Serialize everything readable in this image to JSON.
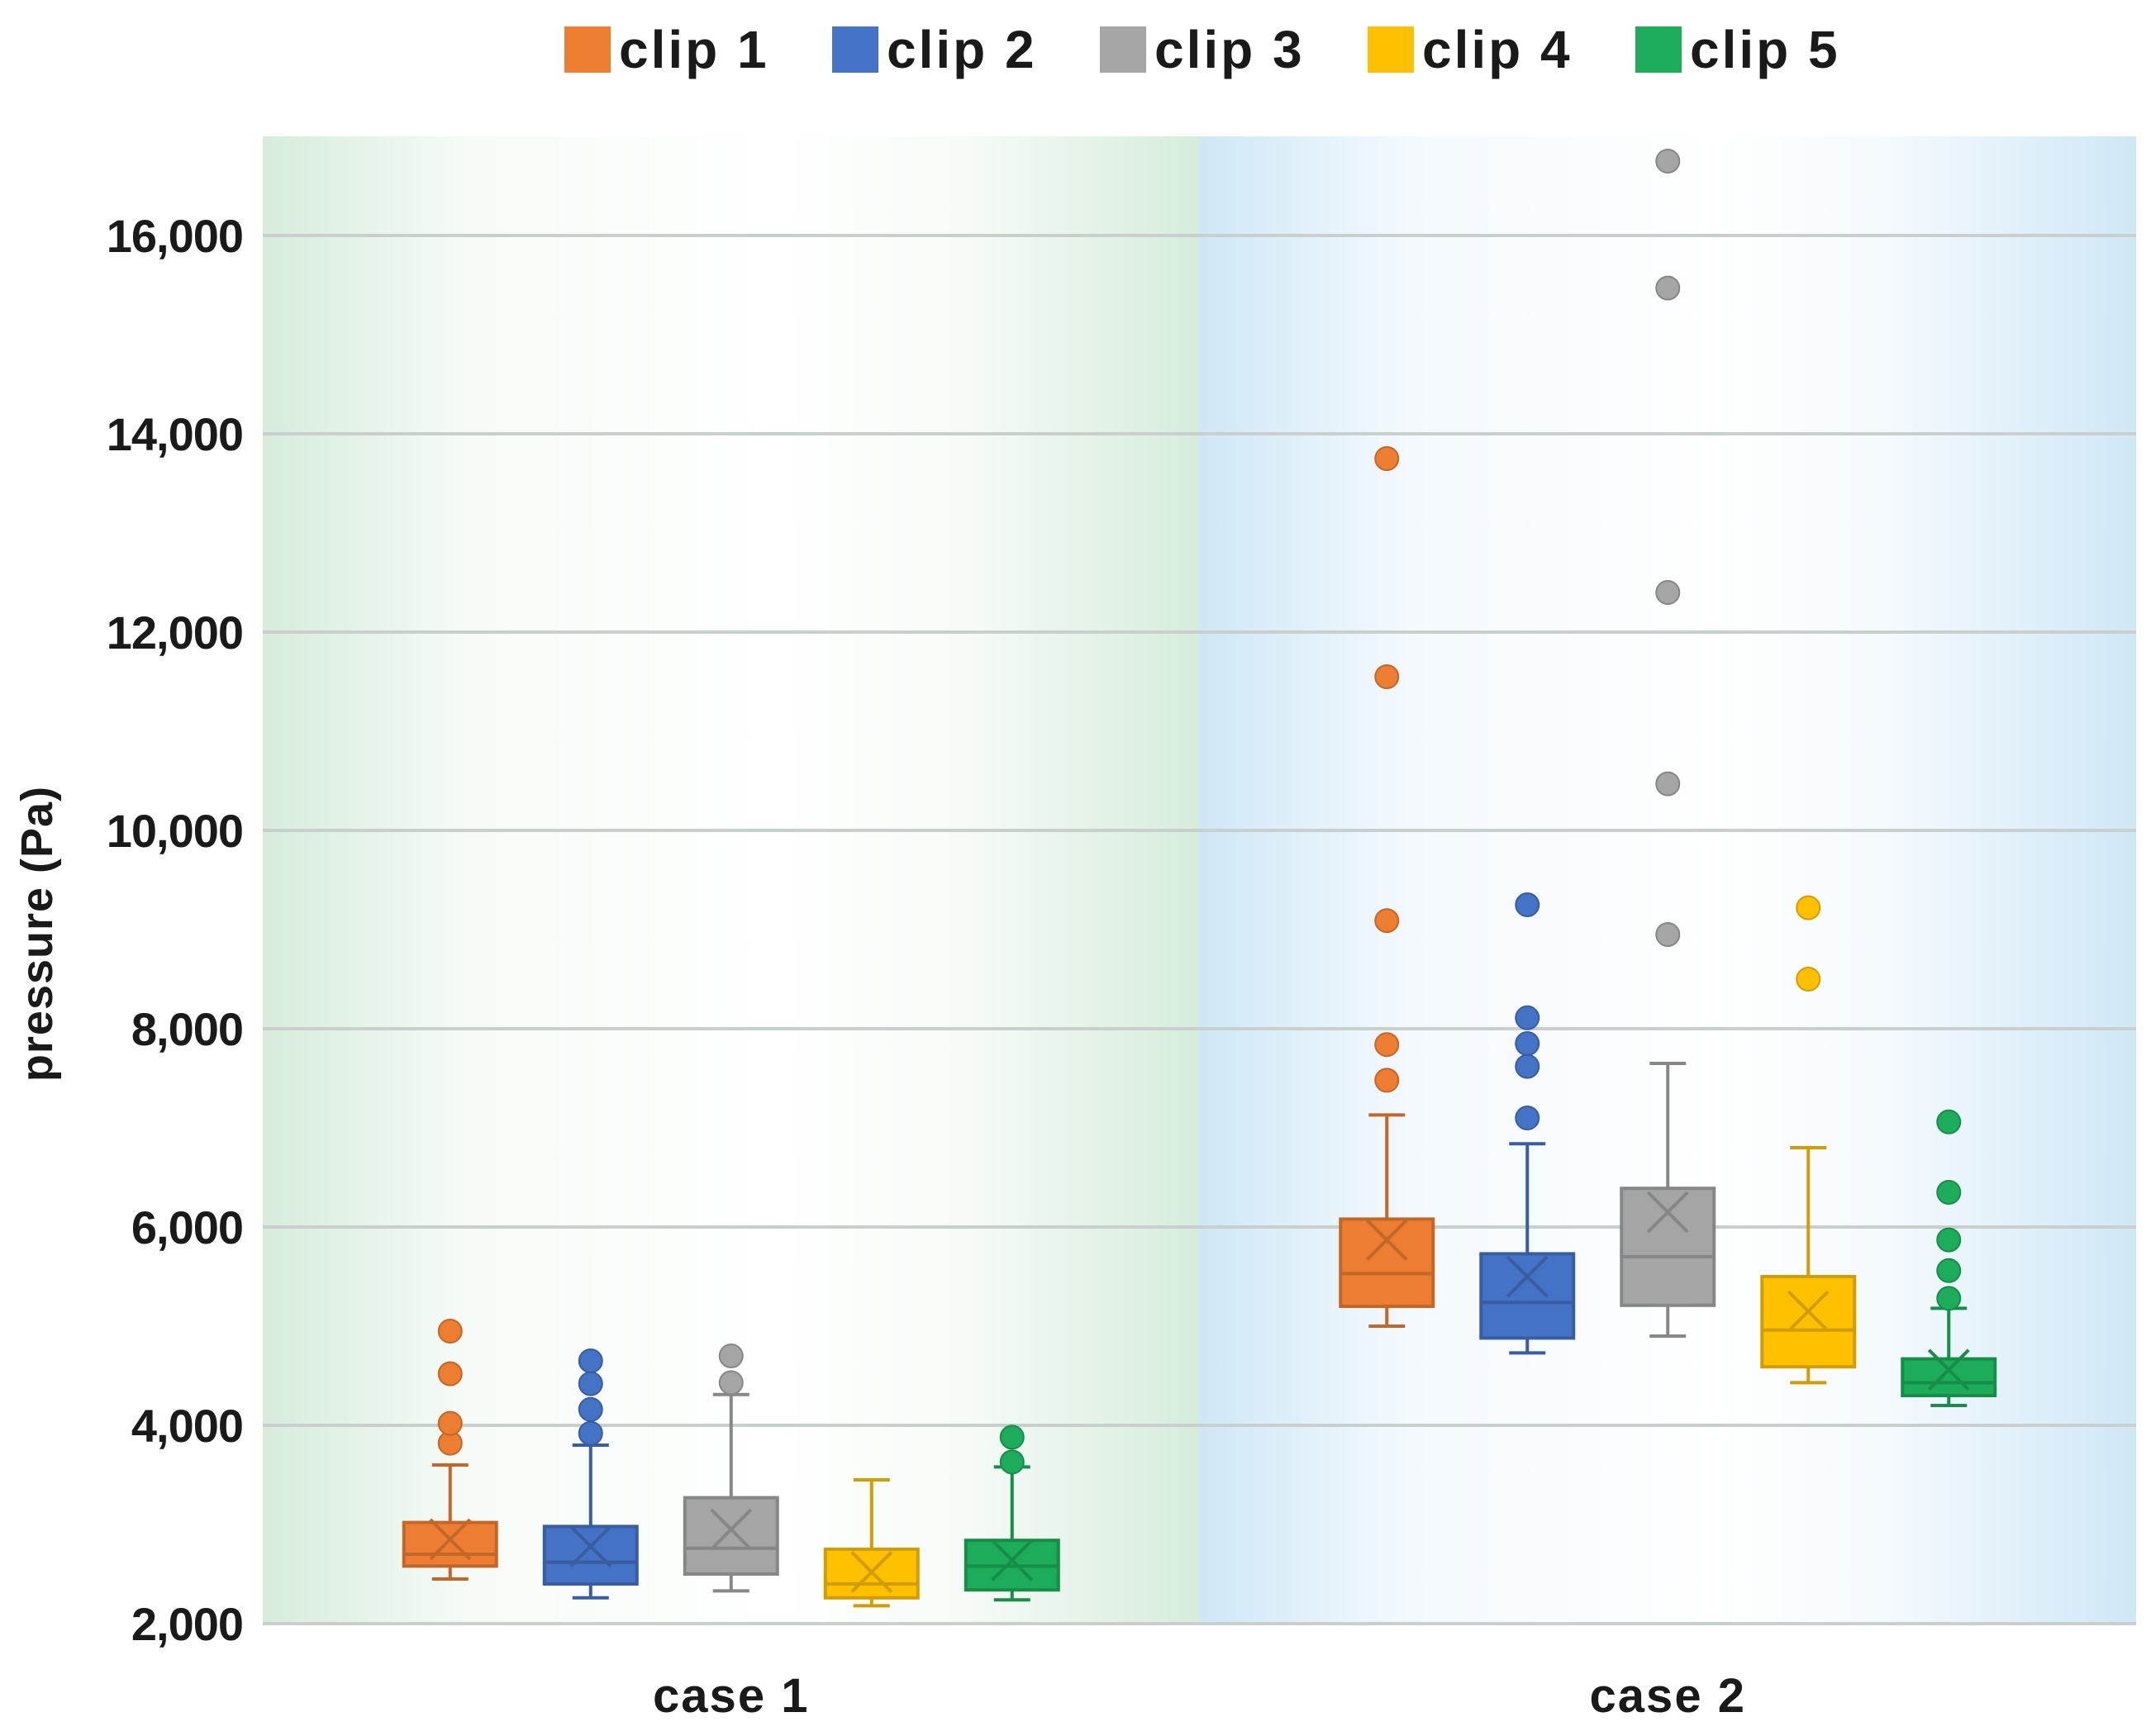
{
  "chart_data": {
    "type": "box",
    "title": "",
    "xlabel": "",
    "ylabel": "pressure (Pa)",
    "categories": [
      "case 1",
      "case 2"
    ],
    "ylim": [
      2000,
      17000
    ],
    "yticks": [
      2000,
      4000,
      6000,
      8000,
      10000,
      12000,
      14000,
      16000
    ],
    "ytick_labels": [
      "2,000",
      "4,000",
      "6,000",
      "8,000",
      "10,000",
      "12,000",
      "14,000",
      "16,000"
    ],
    "grid": true,
    "legend_position": "top",
    "background_bands": [
      {
        "category": "case 1",
        "color": "#d6ecdc"
      },
      {
        "category": "case 2",
        "color": "#cfe7f6"
      }
    ],
    "series": [
      {
        "name": "clip 1",
        "color": "#ed7d31",
        "boxes": [
          {
            "category": "case 1",
            "min": 2450,
            "q1": 2580,
            "median": 2700,
            "q3": 3020,
            "max": 3600,
            "mean": 2850,
            "outliers": [
              3820,
              4020,
              4520,
              4950
            ]
          },
          {
            "category": "case 2",
            "min": 5000,
            "q1": 5200,
            "median": 5530,
            "q3": 6080,
            "max": 7130,
            "mean": 5870,
            "outliers": [
              7480,
              7840,
              9090,
              11550,
              13750
            ]
          }
        ]
      },
      {
        "name": "clip 2",
        "color": "#4472c4",
        "boxes": [
          {
            "category": "case 1",
            "min": 2260,
            "q1": 2400,
            "median": 2620,
            "q3": 2980,
            "max": 3800,
            "mean": 2780,
            "outliers": [
              3920,
              4160,
              4420,
              4650
            ]
          },
          {
            "category": "case 2",
            "min": 4730,
            "q1": 4880,
            "median": 5240,
            "q3": 5730,
            "max": 6840,
            "mean": 5500,
            "outliers": [
              7100,
              7620,
              7850,
              8110,
              9250
            ]
          }
        ]
      },
      {
        "name": "clip 3",
        "color": "#a5a5a5",
        "boxes": [
          {
            "category": "case 1",
            "min": 2330,
            "q1": 2500,
            "median": 2760,
            "q3": 3270,
            "max": 4310,
            "mean": 2950,
            "outliers": [
              4430,
              4700
            ]
          },
          {
            "category": "case 2",
            "min": 4900,
            "q1": 5210,
            "median": 5700,
            "q3": 6390,
            "max": 7650,
            "mean": 6150,
            "outliers": [
              8950,
              10470,
              12400,
              15470,
              16750
            ]
          }
        ]
      },
      {
        "name": "clip 4",
        "color": "#ffc000",
        "boxes": [
          {
            "category": "case 1",
            "min": 2180,
            "q1": 2260,
            "median": 2400,
            "q3": 2750,
            "max": 3450,
            "mean": 2520,
            "outliers": []
          },
          {
            "category": "case 2",
            "min": 4430,
            "q1": 4590,
            "median": 4960,
            "q3": 5500,
            "max": 6800,
            "mean": 5150,
            "outliers": [
              8500,
              9220
            ]
          }
        ]
      },
      {
        "name": "clip 5",
        "color": "#1cac5a",
        "boxes": [
          {
            "category": "case 1",
            "min": 2240,
            "q1": 2340,
            "median": 2580,
            "q3": 2840,
            "max": 3580,
            "mean": 2640,
            "outliers": [
              3630,
              3880
            ]
          },
          {
            "category": "case 2",
            "min": 4200,
            "q1": 4300,
            "median": 4430,
            "q3": 4670,
            "max": 5180,
            "mean": 4560,
            "outliers": [
              5280,
              5560,
              5870,
              6350,
              7060
            ]
          }
        ]
      }
    ]
  }
}
